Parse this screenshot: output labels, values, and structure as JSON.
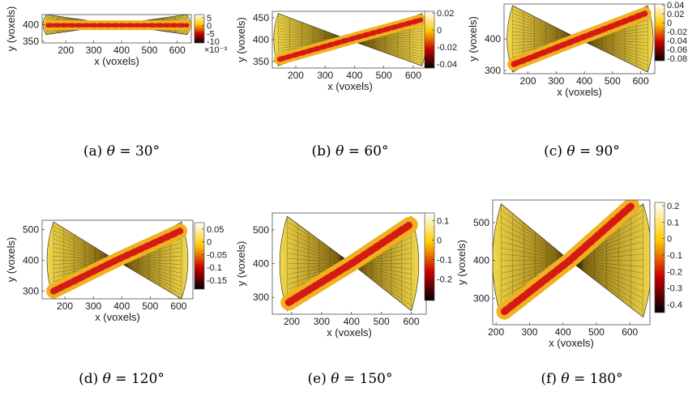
{
  "chart_data": [
    {
      "type": "heatmap",
      "caption": "(a) θ = 30°",
      "caption_label": "(a)",
      "caption_symbol": "θ",
      "caption_value": "= 30°",
      "xlabel": "x (voxels)",
      "ylabel": "y (voxels)",
      "xlim": [
        115,
        650
      ],
      "ylim": [
        345,
        430
      ],
      "xticks": [
        "200",
        "300",
        "400",
        "500",
        "600"
      ],
      "yticks": [
        "350",
        "400"
      ],
      "colorbar": {
        "range": [
          -0.011,
          0.007
        ],
        "ticks": [
          "5",
          "0",
          "-5",
          "-10"
        ],
        "exponent": "×10⁻³"
      },
      "fan": {
        "cx": 380,
        "cy": 400,
        "left_x": 130,
        "right_x": 635,
        "half_height": 30,
        "angle_deg": 30
      },
      "band": [
        {
          "x": 135,
          "y": 398
        },
        {
          "x": 380,
          "y": 398
        },
        {
          "x": 635,
          "y": 398
        }
      ]
    },
    {
      "type": "heatmap",
      "caption": "(b) θ = 60°",
      "caption_label": "(b)",
      "caption_symbol": "θ",
      "caption_value": "= 60°",
      "xlabel": "x (voxels)",
      "ylabel": "y (voxels)",
      "xlim": [
        120,
        650
      ],
      "ylim": [
        335,
        465
      ],
      "xticks": [
        "200",
        "300",
        "400",
        "500",
        "600"
      ],
      "yticks": [
        "350",
        "400",
        "450"
      ],
      "colorbar": {
        "range": [
          -0.045,
          0.022
        ],
        "ticks": [
          "0.02",
          "0",
          "-0.02",
          "-0.04"
        ],
        "exponent": ""
      },
      "fan": {
        "cx": 380,
        "cy": 400,
        "left_x": 140,
        "right_x": 630,
        "half_height": 60,
        "angle_deg": 60
      },
      "band": [
        {
          "x": 145,
          "y": 355
        },
        {
          "x": 380,
          "y": 400
        },
        {
          "x": 625,
          "y": 445
        }
      ]
    },
    {
      "type": "heatmap",
      "caption": "(c) θ = 90°",
      "caption_label": "(c)",
      "caption_symbol": "θ",
      "caption_value": "= 90°",
      "xlabel": "x (voxels)",
      "ylabel": "y (voxels)",
      "xlim": [
        115,
        650
      ],
      "ylim": [
        290,
        510
      ],
      "xticks": [
        "200",
        "300",
        "400",
        "500",
        "600"
      ],
      "yticks": [
        "300",
        "400"
      ],
      "colorbar": {
        "range": [
          -0.085,
          0.042
        ],
        "ticks": [
          "0.04",
          "0.02",
          "0",
          "-0.02",
          "-0.04",
          "-0.06",
          "-0.08"
        ],
        "exponent": ""
      },
      "fan": {
        "cx": 380,
        "cy": 400,
        "left_x": 145,
        "right_x": 625,
        "half_height": 105,
        "angle_deg": 90
      },
      "band": [
        {
          "x": 150,
          "y": 320
        },
        {
          "x": 380,
          "y": 400
        },
        {
          "x": 615,
          "y": 480
        }
      ]
    },
    {
      "type": "heatmap",
      "caption": "(d) θ = 120°",
      "caption_label": "(d)",
      "caption_symbol": "θ",
      "caption_value": "= 120°",
      "xlabel": "x (voxels)",
      "ylabel": "y (voxels)",
      "xlim": [
        120,
        650
      ],
      "ylim": [
        275,
        530
      ],
      "xticks": [
        "200",
        "300",
        "400",
        "500",
        "600"
      ],
      "yticks": [
        "300",
        "400",
        "500"
      ],
      "colorbar": {
        "range": [
          -0.185,
          0.075
        ],
        "ticks": [
          "0.05",
          "0",
          "-0.05",
          "-0.1",
          "-0.15"
        ],
        "exponent": ""
      },
      "fan": {
        "cx": 380,
        "cy": 400,
        "left_x": 160,
        "right_x": 610,
        "half_height": 125,
        "angle_deg": 120
      },
      "band": [
        {
          "x": 160,
          "y": 300
        },
        {
          "x": 380,
          "y": 400
        },
        {
          "x": 605,
          "y": 495
        }
      ]
    },
    {
      "type": "heatmap",
      "caption": "(e) θ = 150°",
      "caption_label": "(e)",
      "caption_symbol": "θ",
      "caption_value": "= 150°",
      "xlabel": "x (voxels)",
      "ylabel": "y (voxels)",
      "xlim": [
        135,
        650
      ],
      "ylim": [
        250,
        550
      ],
      "xticks": [
        "200",
        "300",
        "400",
        "500",
        "600"
      ],
      "yticks": [
        "300",
        "400",
        "500"
      ],
      "colorbar": {
        "range": [
          -0.31,
          0.14
        ],
        "ticks": [
          "0.1",
          "0",
          "-0.1",
          "-0.2"
        ],
        "exponent": ""
      },
      "fan": {
        "cx": 400,
        "cy": 400,
        "left_x": 185,
        "right_x": 600,
        "half_height": 140,
        "angle_deg": 150
      },
      "band": [
        {
          "x": 190,
          "y": 285
        },
        {
          "x": 400,
          "y": 400
        },
        {
          "x": 595,
          "y": 515
        }
      ]
    },
    {
      "type": "heatmap",
      "caption": "(f) θ = 180°",
      "caption_label": "(f)",
      "caption_symbol": "θ",
      "caption_value": "= 180°",
      "xlabel": "x (voxels)",
      "ylabel": "y (voxels)",
      "xlim": [
        190,
        660
      ],
      "ylim": [
        230,
        560
      ],
      "xticks": [
        "200",
        "300",
        "400",
        "500",
        "600"
      ],
      "yticks": [
        "300",
        "400",
        "500"
      ],
      "colorbar": {
        "range": [
          -0.45,
          0.22
        ],
        "ticks": [
          "0.2",
          "0.1",
          "0",
          "-0.1",
          "-0.2",
          "-0.3",
          "-0.4"
        ],
        "exponent": ""
      },
      "fan": {
        "cx": 420,
        "cy": 400,
        "left_x": 215,
        "right_x": 640,
        "half_height": 150,
        "angle_deg": 180
      },
      "band": [
        {
          "x": 225,
          "y": 265
        },
        {
          "x": 420,
          "y": 400
        },
        {
          "x": 605,
          "y": 545
        }
      ]
    }
  ],
  "colors": {
    "hot_dark": "#000000",
    "hot_red": "#d01010",
    "hot_orange": "#f07800",
    "hot_yellow": "#f0dc20",
    "hot_white": "#ffffe8"
  }
}
